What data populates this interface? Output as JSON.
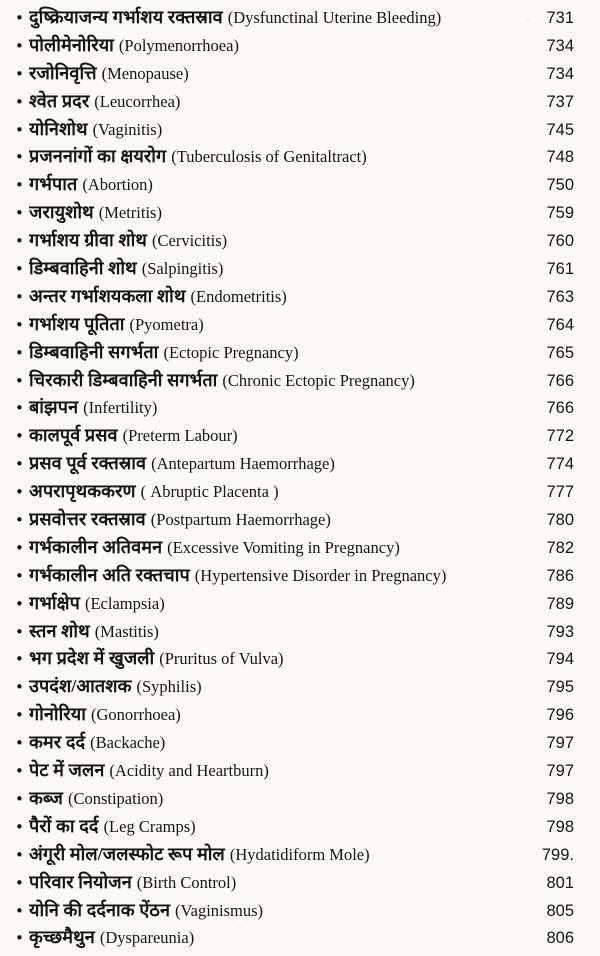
{
  "page_background": "#fbfaf6",
  "text_color": "#141414",
  "toc": {
    "bullet": "•",
    "entries": [
      {
        "hindi": "दुष्क्रियाजन्य गर्भाशय रक्तस्राव",
        "english": "(Dysfunctinal Uterine Bleeding)",
        "page": "731"
      },
      {
        "hindi": "पोलीमेनोरिया",
        "english": "(Polymenorrhoea)",
        "page": "734"
      },
      {
        "hindi": "रजोनिवृत्ति",
        "english": "(Menopause)",
        "page": "734"
      },
      {
        "hindi": "श्वेत प्रदर",
        "english": "(Leucorrhea)",
        "page": "737"
      },
      {
        "hindi": "योनिशोथ",
        "english": "(Vaginitis)",
        "page": "745"
      },
      {
        "hindi": "प्रजननांगों का क्षयरोग",
        "english": "(Tuberculosis of Genitaltract)",
        "page": "748"
      },
      {
        "hindi": "गर्भपात",
        "english": "(Abortion)",
        "page": "750"
      },
      {
        "hindi": "जरायुशोथ",
        "english": "(Metritis)",
        "page": "759"
      },
      {
        "hindi": "गर्भाशय ग्रीवा शोथ",
        "english": "(Cervicitis)",
        "page": "760"
      },
      {
        "hindi": "डिम्बवाहिनी शोथ",
        "english": "(Salpingitis)",
        "page": "761"
      },
      {
        "hindi": "अन्तर गर्भाशयकला शोथ",
        "english": "(Endometritis)",
        "page": "763"
      },
      {
        "hindi": "गर्भाशय पूतिता",
        "english": "(Pyometra)",
        "page": "764"
      },
      {
        "hindi": "डिम्बवाहिनी सगर्भता",
        "english": "(Ectopic Pregnancy)",
        "page": "765"
      },
      {
        "hindi": "चिरकारी डिम्बवाहिनी सगर्भता",
        "english": "(Chronic Ectopic Pregnancy)",
        "page": "766"
      },
      {
        "hindi": "बांझपन",
        "english": "(Infertility)",
        "page": "766"
      },
      {
        "hindi": "कालपूर्व प्रसव",
        "english": "(Preterm Labour)",
        "page": "772"
      },
      {
        "hindi": "प्रसव पूर्व रक्तस्राव",
        "english": "(Antepartum Haemorrhage)",
        "page": "774"
      },
      {
        "hindi": "अपरापृथककरण",
        "english": "( Abruptic Placenta )",
        "page": "777"
      },
      {
        "hindi": "प्रसवोत्तर रक्तस्राव",
        "english": "(Postpartum Haemorrhage)",
        "page": "780"
      },
      {
        "hindi": "गर्भकालीन अतिवमन",
        "english": "(Excessive Vomiting in Pregnancy)",
        "page": "782"
      },
      {
        "hindi": "गर्भकालीन अति रक्तचाप",
        "english": "(Hypertensive Disorder in Pregnancy)",
        "page": "786"
      },
      {
        "hindi": "गर्भाक्षेप",
        "english": "(Eclampsia)",
        "page": "789"
      },
      {
        "hindi": "स्तन शोथ",
        "english": "(Mastitis)",
        "page": "793"
      },
      {
        "hindi": "भग प्रदेश में खुजली",
        "english": "(Pruritus of Vulva)",
        "page": "794"
      },
      {
        "hindi": "उपदंश/आतशक",
        "english": "(Syphilis)",
        "page": "795"
      },
      {
        "hindi": "गोनोरिया",
        "english": "(Gonorrhoea)",
        "page": "796"
      },
      {
        "hindi": "कमर दर्द",
        "english": "(Backache)",
        "page": "797"
      },
      {
        "hindi": "पेट में जलन",
        "english": "(Acidity and Heartburn)",
        "page": "797"
      },
      {
        "hindi": "कब्ज",
        "english": "(Constipation)",
        "page": "798"
      },
      {
        "hindi": "पैरों का दर्द",
        "english": "(Leg Cramps)",
        "page": "798"
      },
      {
        "hindi": "अंगूरी मोल/जलस्फोट रूप मोल",
        "english": "(Hydatidiform Mole)",
        "page": "799."
      },
      {
        "hindi": "परिवार नियोजन",
        "english": "(Birth Control)",
        "page": "801"
      },
      {
        "hindi": "योनि की दर्दनाक ऐंठन",
        "english": "(Vaginismus)",
        "page": "805"
      },
      {
        "hindi": "कृच्छमैथुन",
        "english": "(Dyspareunia)",
        "page": "806"
      }
    ]
  }
}
